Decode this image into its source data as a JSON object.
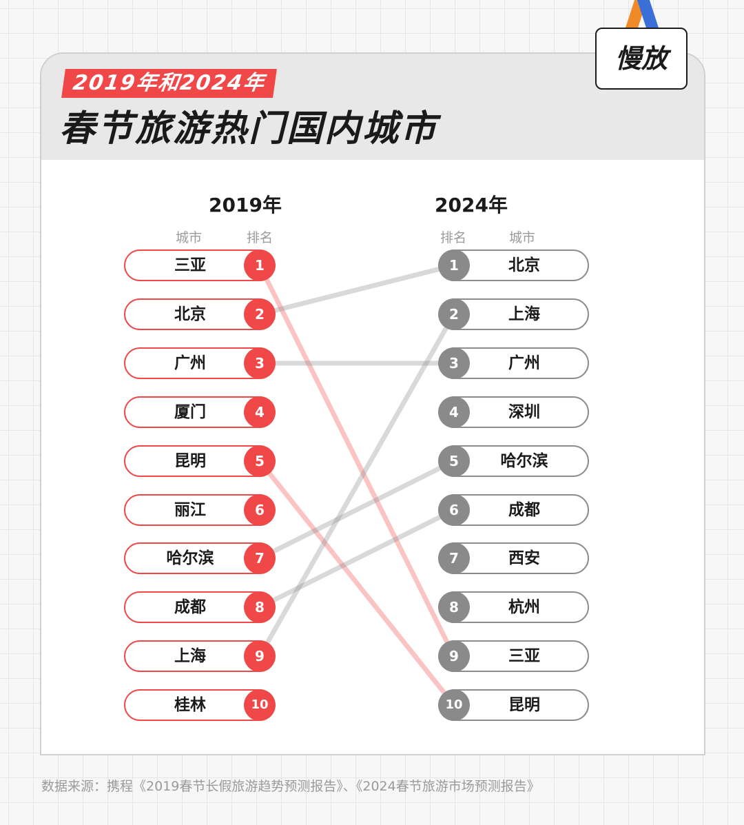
{
  "brand": {
    "logo_text": "慢放",
    "ribbon_colors": [
      "#f08a28",
      "#3b6fd8"
    ]
  },
  "header": {
    "subtitle": "2019年和2024年",
    "title": "春节旅游热门国内城市"
  },
  "chart_data": {
    "type": "slope",
    "left": {
      "year": "2019年",
      "col_city": "城市",
      "col_rank": "排名",
      "color": "#f04848",
      "ranks": [
        {
          "rank": "1",
          "city": "三亚"
        },
        {
          "rank": "2",
          "city": "北京"
        },
        {
          "rank": "3",
          "city": "广州"
        },
        {
          "rank": "4",
          "city": "厦门"
        },
        {
          "rank": "5",
          "city": "昆明"
        },
        {
          "rank": "6",
          "city": "丽江"
        },
        {
          "rank": "7",
          "city": "哈尔滨"
        },
        {
          "rank": "8",
          "city": "成都"
        },
        {
          "rank": "9",
          "city": "上海"
        },
        {
          "rank": "10",
          "city": "桂林"
        }
      ]
    },
    "right": {
      "year": "2024年",
      "col_rank": "排名",
      "col_city": "城市",
      "color": "#8a8a8a",
      "ranks": [
        {
          "rank": "1",
          "city": "北京"
        },
        {
          "rank": "2",
          "city": "上海"
        },
        {
          "rank": "3",
          "city": "广州"
        },
        {
          "rank": "4",
          "city": "深圳"
        },
        {
          "rank": "5",
          "city": "哈尔滨"
        },
        {
          "rank": "6",
          "city": "成都"
        },
        {
          "rank": "7",
          "city": "西安"
        },
        {
          "rank": "8",
          "city": "杭州"
        },
        {
          "rank": "9",
          "city": "三亚"
        },
        {
          "rank": "10",
          "city": "昆明"
        }
      ]
    },
    "links": [
      {
        "from": 1,
        "to": 9,
        "color": "#f04848"
      },
      {
        "from": 5,
        "to": 10,
        "color": "#f04848"
      },
      {
        "from": 2,
        "to": 1,
        "color": "#8a8a8a"
      },
      {
        "from": 3,
        "to": 3,
        "color": "#8a8a8a"
      },
      {
        "from": 7,
        "to": 5,
        "color": "#8a8a8a"
      },
      {
        "from": 8,
        "to": 6,
        "color": "#8a8a8a"
      },
      {
        "from": 9,
        "to": 2,
        "color": "#8a8a8a"
      }
    ]
  },
  "footer": {
    "source": "数据来源：携程《2019春节长假旅游趋势预测报告》、《2024春节旅游市场预测报告》"
  }
}
